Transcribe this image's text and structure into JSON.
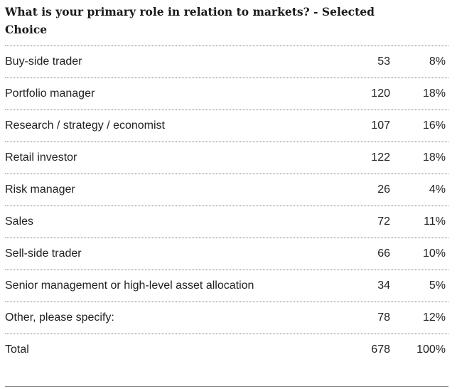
{
  "title": "What is your primary role in relation to markets? - Selected Choice",
  "rows": [
    {
      "label": "Buy-side trader",
      "count": "53",
      "percent": "8%"
    },
    {
      "label": "Portfolio manager",
      "count": "120",
      "percent": "18%"
    },
    {
      "label": "Research / strategy / economist",
      "count": "107",
      "percent": "16%"
    },
    {
      "label": "Retail investor",
      "count": "122",
      "percent": "18%"
    },
    {
      "label": "Risk manager",
      "count": "26",
      "percent": "4%"
    },
    {
      "label": "Sales",
      "count": "72",
      "percent": "11%"
    },
    {
      "label": "Sell-side trader",
      "count": "66",
      "percent": "10%"
    },
    {
      "label": "Senior management or high-level asset allocation",
      "count": "34",
      "percent": "5%"
    },
    {
      "label": "Other, please specify:",
      "count": "78",
      "percent": "12%"
    }
  ],
  "total": {
    "label": "Total",
    "count": "678",
    "percent": "100%"
  }
}
